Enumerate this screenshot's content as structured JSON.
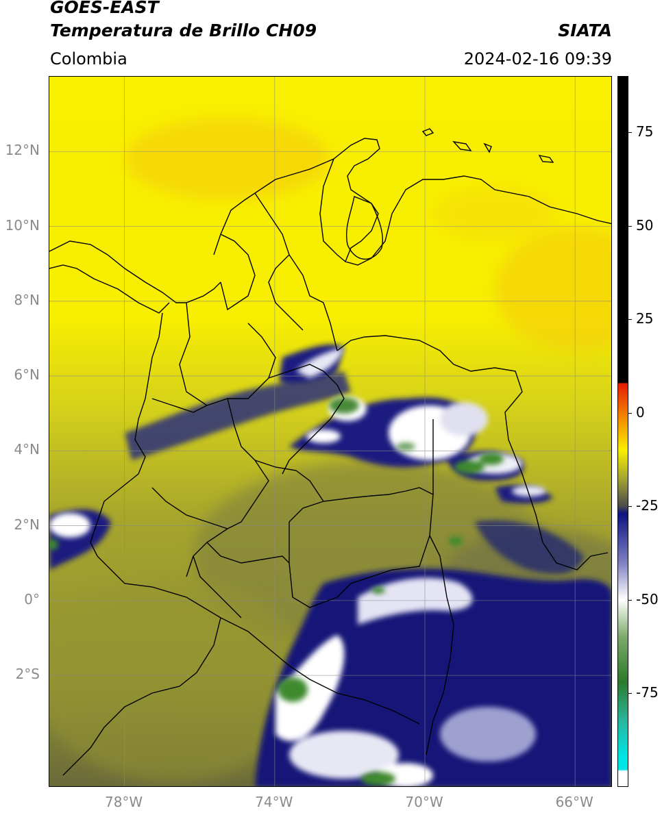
{
  "header": {
    "satellite": "GOES-EAST",
    "product": "Temperatura de Brillo CH09",
    "organization": "SIATA",
    "region": "Colombia",
    "datetime": "2024-02-16 09:39"
  },
  "map": {
    "extent": {
      "lon_min": -80,
      "lon_max": -65,
      "lat_min": -5,
      "lat_max": 14
    },
    "lat_ticks": [
      {
        "value": 12,
        "label": "12°N"
      },
      {
        "value": 10,
        "label": "10°N"
      },
      {
        "value": 8,
        "label": "8°N"
      },
      {
        "value": 6,
        "label": "6°N"
      },
      {
        "value": 4,
        "label": "4°N"
      },
      {
        "value": 2,
        "label": "2°N"
      },
      {
        "value": 0,
        "label": "0°"
      },
      {
        "value": -2,
        "label": "2°S"
      }
    ],
    "lon_ticks": [
      {
        "value": -78,
        "label": "78°W"
      },
      {
        "value": -74,
        "label": "74°W"
      },
      {
        "value": -70,
        "label": "70°W"
      },
      {
        "value": -66,
        "label": "66°W"
      }
    ],
    "colors": {
      "warm": "#f9ef00",
      "mid": "#9fa233",
      "cold": "#1a1d80",
      "coldest": "#3f8a2e",
      "border": "#000000",
      "grid": "#8a8a8a"
    }
  },
  "colorbar": {
    "range": [
      -100,
      90
    ],
    "ticks": [
      {
        "value": 75,
        "label": "75"
      },
      {
        "value": 50,
        "label": "50"
      },
      {
        "value": 25,
        "label": "25"
      },
      {
        "value": 0,
        "label": "0"
      },
      {
        "value": -25,
        "label": "-25"
      },
      {
        "value": -50,
        "label": "-50"
      },
      {
        "value": -75,
        "label": "-75"
      }
    ],
    "stops": [
      {
        "value": 90,
        "color": "#000000"
      },
      {
        "value": 8,
        "color": "#000000"
      },
      {
        "value": 7.9,
        "color": "#e61a00"
      },
      {
        "value": -2,
        "color": "#f39200"
      },
      {
        "value": -10,
        "color": "#f9ef00"
      },
      {
        "value": -18,
        "color": "#a0a033"
      },
      {
        "value": -25,
        "color": "#4b4b4b"
      },
      {
        "value": -27,
        "color": "#0d1380"
      },
      {
        "value": -40,
        "color": "#7d7fc0"
      },
      {
        "value": -50,
        "color": "#ffffff"
      },
      {
        "value": -60,
        "color": "#7dab6a"
      },
      {
        "value": -72,
        "color": "#2c7a2a"
      },
      {
        "value": -82,
        "color": "#2ab39a"
      },
      {
        "value": -92,
        "color": "#00e5e5"
      },
      {
        "value": -95.5,
        "color": "#00e5e5"
      },
      {
        "value": -96,
        "color": "#ffffff"
      },
      {
        "value": -100,
        "color": "#ffffff"
      }
    ]
  }
}
